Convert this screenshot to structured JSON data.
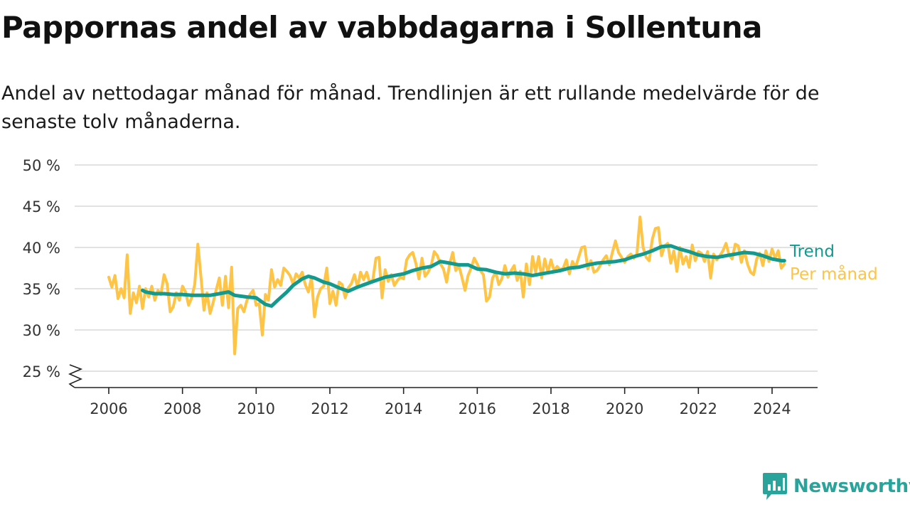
{
  "title": "Pappornas andel av vabbdagarna i Sollentuna",
  "subtitle": "Andel av nettodagar månad för månad. Trendlinjen är ett rullande medelvärde för de senaste tolv månaderna.",
  "brand": {
    "name": "Newsworthy",
    "color": "#2aa39b"
  },
  "colors": {
    "trend": "#13998d",
    "monthly": "#fdc446",
    "grid": "#d9d9d9",
    "axis": "#222222"
  },
  "chart_data": {
    "type": "line",
    "xlabel": "",
    "ylabel": "",
    "x_ticks": [
      "2006",
      "2008",
      "2010",
      "2012",
      "2014",
      "2016",
      "2018",
      "2020",
      "2022",
      "2024"
    ],
    "y_ticks": [
      "25 %",
      "30 %",
      "35 %",
      "40 %",
      "45 %",
      "50 %"
    ],
    "y_tick_values": [
      25,
      30,
      35,
      40,
      45,
      50
    ],
    "ylim": [
      23,
      50
    ],
    "xlim": [
      2005.1,
      2025.2
    ],
    "y_axis_break": true,
    "grid": true,
    "series": [
      {
        "name": "Per månad",
        "color": "#fdc446",
        "points": [
          [
            2006.0,
            36.4
          ],
          [
            2006.083,
            35.2
          ],
          [
            2006.167,
            36.6
          ],
          [
            2006.25,
            33.8
          ],
          [
            2006.333,
            35.0
          ],
          [
            2006.417,
            33.9
          ],
          [
            2006.5,
            39.1
          ],
          [
            2006.583,
            32.0
          ],
          [
            2006.667,
            34.5
          ],
          [
            2006.75,
            33.3
          ],
          [
            2006.833,
            35.3
          ],
          [
            2006.917,
            32.6
          ],
          [
            2007.0,
            35.0
          ],
          [
            2007.083,
            34.0
          ],
          [
            2007.167,
            35.3
          ],
          [
            2007.25,
            33.6
          ],
          [
            2007.333,
            34.8
          ],
          [
            2007.417,
            34.3
          ],
          [
            2007.5,
            36.7
          ],
          [
            2007.583,
            35.6
          ],
          [
            2007.667,
            32.2
          ],
          [
            2007.75,
            32.8
          ],
          [
            2007.833,
            34.5
          ],
          [
            2007.917,
            33.6
          ],
          [
            2008.0,
            35.3
          ],
          [
            2008.083,
            34.6
          ],
          [
            2008.167,
            33.0
          ],
          [
            2008.25,
            33.9
          ],
          [
            2008.333,
            35.5
          ],
          [
            2008.417,
            40.4
          ],
          [
            2008.5,
            36.5
          ],
          [
            2008.583,
            32.4
          ],
          [
            2008.667,
            34.5
          ],
          [
            2008.75,
            32.0
          ],
          [
            2008.833,
            33.3
          ],
          [
            2008.917,
            34.9
          ],
          [
            2009.0,
            36.3
          ],
          [
            2009.083,
            33.0
          ],
          [
            2009.167,
            36.5
          ],
          [
            2009.25,
            32.7
          ],
          [
            2009.333,
            37.6
          ],
          [
            2009.417,
            27.1
          ],
          [
            2009.5,
            32.6
          ],
          [
            2009.583,
            33.0
          ],
          [
            2009.667,
            32.2
          ],
          [
            2009.75,
            33.6
          ],
          [
            2009.833,
            34.3
          ],
          [
            2009.917,
            34.8
          ],
          [
            2010.0,
            33.0
          ],
          [
            2010.083,
            33.2
          ],
          [
            2010.167,
            29.4
          ],
          [
            2010.25,
            34.3
          ],
          [
            2010.333,
            33.6
          ],
          [
            2010.417,
            37.3
          ],
          [
            2010.5,
            35.2
          ],
          [
            2010.583,
            36.1
          ],
          [
            2010.667,
            35.4
          ],
          [
            2010.75,
            37.5
          ],
          [
            2010.833,
            37.1
          ],
          [
            2010.917,
            36.6
          ],
          [
            2011.0,
            35.6
          ],
          [
            2011.083,
            36.8
          ],
          [
            2011.167,
            36.3
          ],
          [
            2011.25,
            37.0
          ],
          [
            2011.333,
            35.5
          ],
          [
            2011.417,
            34.6
          ],
          [
            2011.5,
            36.4
          ],
          [
            2011.583,
            31.6
          ],
          [
            2011.667,
            34.0
          ],
          [
            2011.75,
            35.0
          ],
          [
            2011.833,
            35.3
          ],
          [
            2011.917,
            37.5
          ],
          [
            2012.0,
            33.2
          ],
          [
            2012.083,
            34.7
          ],
          [
            2012.167,
            33.0
          ],
          [
            2012.25,
            35.8
          ],
          [
            2012.333,
            35.5
          ],
          [
            2012.417,
            33.9
          ],
          [
            2012.5,
            35.1
          ],
          [
            2012.583,
            35.6
          ],
          [
            2012.667,
            36.7
          ],
          [
            2012.75,
            35.2
          ],
          [
            2012.833,
            37.0
          ],
          [
            2012.917,
            36.1
          ],
          [
            2013.0,
            37.0
          ],
          [
            2013.083,
            35.7
          ],
          [
            2013.167,
            36.1
          ],
          [
            2013.25,
            38.7
          ],
          [
            2013.333,
            38.8
          ],
          [
            2013.417,
            33.9
          ],
          [
            2013.5,
            37.3
          ],
          [
            2013.583,
            35.9
          ],
          [
            2013.667,
            36.7
          ],
          [
            2013.75,
            35.4
          ],
          [
            2013.833,
            36.0
          ],
          [
            2013.917,
            36.4
          ],
          [
            2014.0,
            36.2
          ],
          [
            2014.083,
            38.5
          ],
          [
            2014.167,
            39.1
          ],
          [
            2014.25,
            39.4
          ],
          [
            2014.333,
            38.1
          ],
          [
            2014.417,
            36.2
          ],
          [
            2014.5,
            38.7
          ],
          [
            2014.583,
            36.5
          ],
          [
            2014.667,
            37.0
          ],
          [
            2014.75,
            37.8
          ],
          [
            2014.833,
            39.5
          ],
          [
            2014.917,
            39.0
          ],
          [
            2015.0,
            38.0
          ],
          [
            2015.083,
            37.4
          ],
          [
            2015.167,
            35.8
          ],
          [
            2015.25,
            38.0
          ],
          [
            2015.333,
            39.4
          ],
          [
            2015.417,
            37.2
          ],
          [
            2015.5,
            37.8
          ],
          [
            2015.583,
            36.4
          ],
          [
            2015.667,
            34.8
          ],
          [
            2015.75,
            36.6
          ],
          [
            2015.833,
            37.5
          ],
          [
            2015.917,
            38.7
          ],
          [
            2016.0,
            38.0
          ],
          [
            2016.083,
            37.2
          ],
          [
            2016.167,
            36.7
          ],
          [
            2016.25,
            33.5
          ],
          [
            2016.333,
            34.0
          ],
          [
            2016.417,
            36.3
          ],
          [
            2016.5,
            37.0
          ],
          [
            2016.583,
            35.5
          ],
          [
            2016.667,
            36.2
          ],
          [
            2016.75,
            37.8
          ],
          [
            2016.833,
            36.4
          ],
          [
            2016.917,
            37.2
          ],
          [
            2017.0,
            37.8
          ],
          [
            2017.083,
            36.0
          ],
          [
            2017.167,
            37.1
          ],
          [
            2017.25,
            34.0
          ],
          [
            2017.333,
            38.0
          ],
          [
            2017.417,
            35.5
          ],
          [
            2017.5,
            38.9
          ],
          [
            2017.583,
            37.0
          ],
          [
            2017.667,
            38.9
          ],
          [
            2017.75,
            36.3
          ],
          [
            2017.833,
            38.6
          ],
          [
            2017.917,
            37.0
          ],
          [
            2018.0,
            38.5
          ],
          [
            2018.083,
            37.2
          ],
          [
            2018.167,
            37.7
          ],
          [
            2018.25,
            37.3
          ],
          [
            2018.333,
            37.5
          ],
          [
            2018.417,
            38.5
          ],
          [
            2018.5,
            36.8
          ],
          [
            2018.583,
            38.3
          ],
          [
            2018.667,
            37.6
          ],
          [
            2018.75,
            38.8
          ],
          [
            2018.833,
            40.0
          ],
          [
            2018.917,
            40.1
          ],
          [
            2019.0,
            37.4
          ],
          [
            2019.083,
            38.4
          ],
          [
            2019.167,
            37.0
          ],
          [
            2019.25,
            37.2
          ],
          [
            2019.333,
            37.8
          ],
          [
            2019.417,
            38.5
          ],
          [
            2019.5,
            39.0
          ],
          [
            2019.583,
            37.9
          ],
          [
            2019.667,
            39.4
          ],
          [
            2019.75,
            40.8
          ],
          [
            2019.833,
            39.4
          ],
          [
            2019.917,
            38.8
          ],
          [
            2020.0,
            38.2
          ],
          [
            2020.083,
            38.9
          ],
          [
            2020.167,
            39.2
          ],
          [
            2020.25,
            38.7
          ],
          [
            2020.333,
            39.2
          ],
          [
            2020.417,
            43.7
          ],
          [
            2020.5,
            40.0
          ],
          [
            2020.583,
            38.8
          ],
          [
            2020.667,
            38.4
          ],
          [
            2020.75,
            41.0
          ],
          [
            2020.833,
            42.3
          ],
          [
            2020.917,
            42.4
          ],
          [
            2021.0,
            39.0
          ],
          [
            2021.083,
            40.2
          ],
          [
            2021.167,
            40.5
          ],
          [
            2021.25,
            38.1
          ],
          [
            2021.333,
            39.6
          ],
          [
            2021.417,
            37.1
          ],
          [
            2021.5,
            40.0
          ],
          [
            2021.583,
            38.0
          ],
          [
            2021.667,
            38.9
          ],
          [
            2021.75,
            37.6
          ],
          [
            2021.833,
            40.3
          ],
          [
            2021.917,
            38.4
          ],
          [
            2022.0,
            39.5
          ],
          [
            2022.083,
            39.3
          ],
          [
            2022.167,
            38.3
          ],
          [
            2022.25,
            39.5
          ],
          [
            2022.333,
            36.3
          ],
          [
            2022.417,
            39.2
          ],
          [
            2022.5,
            38.5
          ],
          [
            2022.583,
            39.0
          ],
          [
            2022.667,
            39.6
          ],
          [
            2022.75,
            40.5
          ],
          [
            2022.833,
            39.1
          ],
          [
            2022.917,
            38.6
          ],
          [
            2023.0,
            40.4
          ],
          [
            2023.083,
            40.2
          ],
          [
            2023.167,
            38.2
          ],
          [
            2023.25,
            39.6
          ],
          [
            2023.333,
            38.0
          ],
          [
            2023.417,
            37.0
          ],
          [
            2023.5,
            36.7
          ],
          [
            2023.583,
            38.6
          ],
          [
            2023.667,
            39.3
          ],
          [
            2023.75,
            37.8
          ],
          [
            2023.833,
            39.6
          ],
          [
            2023.917,
            38.3
          ],
          [
            2024.0,
            39.8
          ],
          [
            2024.083,
            38.7
          ],
          [
            2024.167,
            39.6
          ],
          [
            2024.25,
            37.5
          ],
          [
            2024.333,
            38.0
          ]
        ]
      },
      {
        "name": "Trend",
        "color": "#13998d",
        "points": [
          [
            2006.917,
            34.8
          ],
          [
            2007.0,
            34.6
          ],
          [
            2007.25,
            34.4
          ],
          [
            2007.5,
            34.4
          ],
          [
            2007.75,
            34.3
          ],
          [
            2008.0,
            34.3
          ],
          [
            2008.25,
            34.2
          ],
          [
            2008.5,
            34.2
          ],
          [
            2008.75,
            34.2
          ],
          [
            2009.0,
            34.4
          ],
          [
            2009.25,
            34.6
          ],
          [
            2009.417,
            34.2
          ],
          [
            2009.75,
            34.0
          ],
          [
            2010.0,
            33.9
          ],
          [
            2010.25,
            33.1
          ],
          [
            2010.417,
            32.9
          ],
          [
            2010.583,
            33.6
          ],
          [
            2010.833,
            34.6
          ],
          [
            2011.0,
            35.4
          ],
          [
            2011.25,
            36.2
          ],
          [
            2011.417,
            36.5
          ],
          [
            2011.583,
            36.3
          ],
          [
            2011.833,
            35.8
          ],
          [
            2012.0,
            35.6
          ],
          [
            2012.25,
            35.1
          ],
          [
            2012.5,
            34.7
          ],
          [
            2012.75,
            35.2
          ],
          [
            2013.0,
            35.6
          ],
          [
            2013.25,
            36.0
          ],
          [
            2013.5,
            36.4
          ],
          [
            2013.75,
            36.6
          ],
          [
            2014.0,
            36.8
          ],
          [
            2014.25,
            37.2
          ],
          [
            2014.5,
            37.5
          ],
          [
            2014.75,
            37.7
          ],
          [
            2015.0,
            38.3
          ],
          [
            2015.25,
            38.1
          ],
          [
            2015.5,
            37.9
          ],
          [
            2015.75,
            37.9
          ],
          [
            2016.0,
            37.4
          ],
          [
            2016.25,
            37.3
          ],
          [
            2016.5,
            37.0
          ],
          [
            2016.75,
            36.8
          ],
          [
            2017.0,
            36.9
          ],
          [
            2017.25,
            36.8
          ],
          [
            2017.5,
            36.6
          ],
          [
            2017.75,
            36.8
          ],
          [
            2018.0,
            37.0
          ],
          [
            2018.25,
            37.2
          ],
          [
            2018.5,
            37.5
          ],
          [
            2018.75,
            37.6
          ],
          [
            2019.0,
            37.9
          ],
          [
            2019.25,
            38.1
          ],
          [
            2019.5,
            38.2
          ],
          [
            2019.75,
            38.3
          ],
          [
            2020.0,
            38.5
          ],
          [
            2020.25,
            38.9
          ],
          [
            2020.5,
            39.2
          ],
          [
            2020.75,
            39.6
          ],
          [
            2021.0,
            40.1
          ],
          [
            2021.25,
            40.2
          ],
          [
            2021.5,
            39.8
          ],
          [
            2021.75,
            39.5
          ],
          [
            2022.0,
            39.1
          ],
          [
            2022.25,
            38.9
          ],
          [
            2022.5,
            38.8
          ],
          [
            2022.75,
            39.0
          ],
          [
            2023.0,
            39.2
          ],
          [
            2023.25,
            39.4
          ],
          [
            2023.5,
            39.3
          ],
          [
            2023.75,
            39.0
          ],
          [
            2024.0,
            38.6
          ],
          [
            2024.25,
            38.4
          ],
          [
            2024.333,
            38.4
          ]
        ]
      }
    ]
  }
}
